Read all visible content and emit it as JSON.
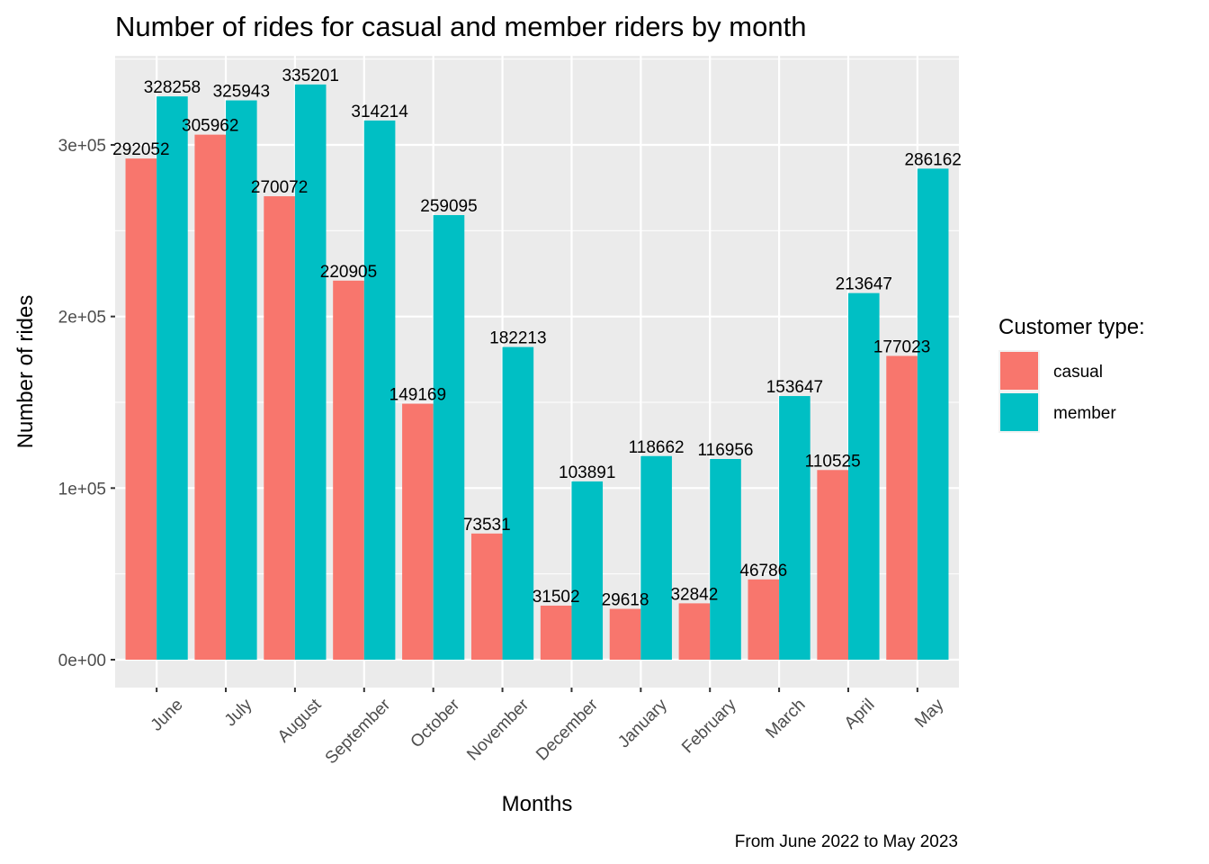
{
  "chart_data": {
    "type": "bar",
    "title": "Number of rides for casual and member riders by month",
    "xlabel": "Months",
    "ylabel": "Number of rides",
    "caption": "From June 2022 to May 2023",
    "categories": [
      "June",
      "July",
      "August",
      "September",
      "October",
      "November",
      "December",
      "January",
      "February",
      "March",
      "April",
      "May"
    ],
    "series": [
      {
        "name": "casual",
        "color": "#F8766D",
        "values": [
          292052,
          305962,
          270072,
          220905,
          149169,
          73531,
          31502,
          29618,
          32842,
          46786,
          110525,
          177023
        ]
      },
      {
        "name": "member",
        "color": "#00BFC4",
        "values": [
          328258,
          325943,
          335201,
          314214,
          259095,
          182213,
          103891,
          118662,
          116956,
          153647,
          213647,
          286162
        ]
      }
    ],
    "ylim": [
      0,
      350000
    ],
    "yticks": [
      0,
      100000,
      200000,
      300000
    ],
    "ytick_labels": [
      "0e+00",
      "1e+05",
      "2e+05",
      "3e+05"
    ],
    "grid": true,
    "panel_background": "#EBEBEB",
    "legend": {
      "title": "Customer type:",
      "position": "right"
    }
  }
}
